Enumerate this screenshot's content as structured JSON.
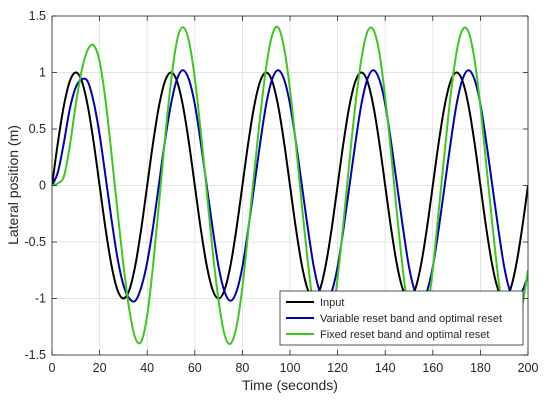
{
  "chart_data": {
    "type": "line",
    "title": "",
    "xlabel": "Time (seconds)",
    "ylabel": "Lateral position (m)",
    "xlim": [
      0,
      200
    ],
    "ylim": [
      -1.5,
      1.5
    ],
    "xticks": [
      0,
      20,
      40,
      60,
      80,
      100,
      120,
      140,
      160,
      180,
      200
    ],
    "yticks": [
      -1.5,
      -1,
      -0.5,
      0,
      0.5,
      1,
      1.5
    ],
    "xtick_labels": [
      "0",
      "20",
      "40",
      "60",
      "80",
      "100",
      "120",
      "140",
      "160",
      "180",
      "200"
    ],
    "ytick_labels": [
      "-1.5",
      "-1",
      "-0.5",
      "0",
      "0.5",
      "1",
      "1.5"
    ],
    "grid": true,
    "legend_position": "bottom-right",
    "x": [
      0,
      2.5,
      5,
      7.5,
      10,
      12.5,
      15,
      17.5,
      20,
      22.5,
      25,
      27.5,
      30,
      32.5,
      35,
      37.5,
      40,
      42.5,
      45,
      47.5,
      50,
      52.5,
      55,
      57.5,
      60,
      62.5,
      65,
      67.5,
      70,
      72.5,
      75,
      77.5,
      80,
      82.5,
      85,
      87.5,
      90,
      92.5,
      95,
      97.5,
      100,
      102.5,
      105,
      107.5,
      110,
      112.5,
      115,
      117.5,
      120,
      122.5,
      125,
      127.5,
      130,
      132.5,
      135,
      137.5,
      140,
      142.5,
      145,
      147.5,
      150,
      152.5,
      155,
      157.5,
      160,
      162.5,
      165,
      167.5,
      170,
      172.5,
      175,
      177.5,
      180,
      182.5,
      185,
      187.5,
      190,
      192.5,
      195,
      197.5,
      200
    ],
    "series": [
      {
        "name": "Input",
        "color": "#000000",
        "values": [
          0,
          0.383,
          0.707,
          0.924,
          1.0,
          0.924,
          0.707,
          0.383,
          0,
          -0.383,
          -0.707,
          -0.924,
          -1.0,
          -0.924,
          -0.707,
          -0.383,
          0,
          0.383,
          0.707,
          0.924,
          1.0,
          0.924,
          0.707,
          0.383,
          0,
          -0.383,
          -0.707,
          -0.924,
          -1.0,
          -0.924,
          -0.707,
          -0.383,
          0,
          0.383,
          0.707,
          0.924,
          1.0,
          0.924,
          0.707,
          0.383,
          0,
          -0.383,
          -0.707,
          -0.924,
          -1.0,
          -0.924,
          -0.707,
          -0.383,
          0,
          0.383,
          0.707,
          0.924,
          1.0,
          0.924,
          0.707,
          0.383,
          0,
          -0.383,
          -0.707,
          -0.924,
          -1.0,
          -0.924,
          -0.707,
          -0.383,
          0,
          0.383,
          0.707,
          0.924,
          1.0,
          0.924,
          0.707,
          0.383,
          0,
          -0.383,
          -0.707,
          -0.924,
          -1.0,
          -0.924,
          -0.707,
          -0.383,
          0
        ]
      },
      {
        "name": "Variable reset band and optimal reset",
        "color": "#0000b4",
        "values": [
          0,
          0.12,
          0.38,
          0.68,
          0.87,
          0.94,
          0.92,
          0.74,
          0.45,
          0.08,
          -0.3,
          -0.64,
          -0.88,
          -1.0,
          -1.02,
          -0.9,
          -0.68,
          -0.36,
          0.02,
          0.4,
          0.72,
          0.94,
          1.02,
          0.94,
          0.72,
          0.38,
          0.0,
          -0.38,
          -0.72,
          -0.94,
          -1.02,
          -0.94,
          -0.72,
          -0.38,
          0.0,
          0.38,
          0.72,
          0.94,
          1.02,
          0.94,
          0.72,
          0.38,
          0.0,
          -0.38,
          -0.72,
          -0.94,
          -1.02,
          -0.94,
          -0.72,
          -0.38,
          0.0,
          0.38,
          0.72,
          0.94,
          1.02,
          0.94,
          0.72,
          0.38,
          0.0,
          -0.38,
          -0.72,
          -0.94,
          -1.02,
          -0.94,
          -0.72,
          -0.38,
          0.0,
          0.38,
          0.72,
          0.94,
          1.02,
          0.94,
          0.72,
          0.38,
          0.0,
          -0.38,
          -0.72,
          -0.94,
          -1.02,
          -0.94,
          -0.8
        ]
      },
      {
        "name": "Fixed reset band and optimal reset",
        "color": "#3cc81e",
        "values": [
          0,
          0.02,
          0.08,
          0.35,
          0.72,
          1.02,
          1.2,
          1.24,
          1.1,
          0.75,
          0.28,
          -0.22,
          -0.7,
          -1.1,
          -1.35,
          -1.38,
          -1.15,
          -0.7,
          -0.15,
          0.42,
          0.92,
          1.28,
          1.4,
          1.28,
          0.95,
          0.48,
          -0.05,
          -0.58,
          -1.02,
          -1.32,
          -1.4,
          -1.25,
          -0.9,
          -0.4,
          0.12,
          0.62,
          1.05,
          1.33,
          1.4,
          1.22,
          0.85,
          0.36,
          -0.18,
          -0.68,
          -1.1,
          -1.35,
          -1.39,
          -1.2,
          -0.82,
          -0.32,
          0.22,
          0.72,
          1.12,
          1.36,
          1.38,
          1.18,
          0.78,
          0.28,
          -0.26,
          -0.76,
          -1.15,
          -1.38,
          -1.37,
          -1.14,
          -0.74,
          -0.22,
          0.3,
          0.8,
          1.18,
          1.38,
          1.36,
          1.12,
          0.7,
          0.18,
          -0.34,
          -0.82,
          -1.2,
          -1.38,
          -1.35,
          -1.08,
          -0.75
        ]
      }
    ]
  }
}
